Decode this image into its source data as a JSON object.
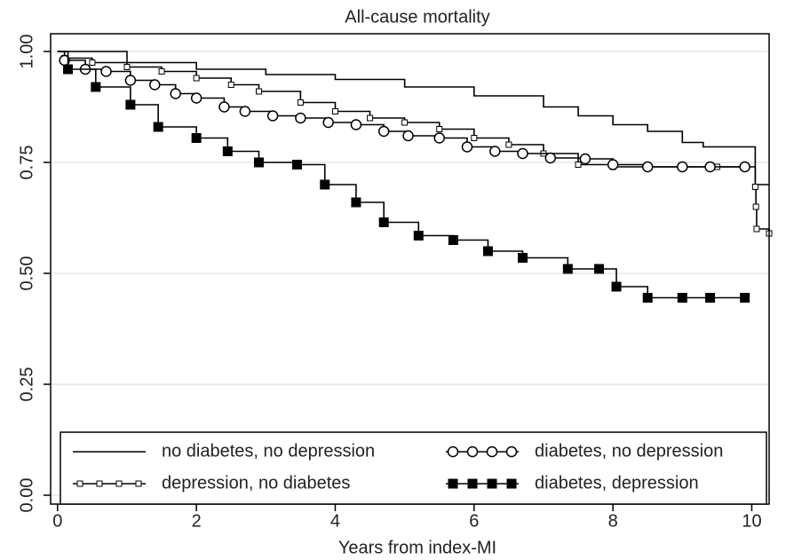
{
  "chart_data": {
    "type": "line",
    "step": true,
    "title": "All-cause mortality",
    "x_label": "Years from index-MI",
    "xlim": [
      -0.1,
      10.25
    ],
    "xticks": [
      0,
      2,
      4,
      6,
      8,
      10
    ],
    "ylim": [
      -0.02,
      1.04
    ],
    "yticks": [
      {
        "value": 0,
        "label": "0.00"
      },
      {
        "value": 0.25,
        "label": "0.25"
      },
      {
        "value": 0.5,
        "label": "0.50"
      },
      {
        "value": 0.75,
        "label": "0.75"
      },
      {
        "value": 1,
        "label": "1.00"
      }
    ],
    "grid": true,
    "legend": "bottom",
    "series": [
      {
        "name": "no diabetes, no depression",
        "color": "#000000",
        "marker": "none",
        "x": [
          0,
          1,
          2,
          3,
          4,
          5,
          6,
          7,
          7.5,
          8,
          8.5,
          9,
          9.3,
          10.05,
          10.25
        ],
        "values": [
          1,
          0.975,
          0.96,
          0.948,
          0.937,
          0.92,
          0.9,
          0.875,
          0.855,
          0.835,
          0.82,
          0.795,
          0.785,
          0.7,
          0.7
        ]
      },
      {
        "name": "depression, no diabetes",
        "color": "#000000",
        "marker": "open-square",
        "x": [
          0,
          0.1,
          0.5,
          1.0,
          1.5,
          2.0,
          2.5,
          2.9,
          3.5,
          4.0,
          4.5,
          5.0,
          5.5,
          6.0,
          6.5,
          7.0,
          7.5,
          8.0,
          8.5,
          9.0,
          9.5,
          9.9,
          10.05,
          10.06,
          10.07,
          10.25
        ],
        "values": [
          1,
          0.985,
          0.975,
          0.965,
          0.955,
          0.94,
          0.925,
          0.91,
          0.885,
          0.865,
          0.85,
          0.84,
          0.825,
          0.805,
          0.79,
          0.77,
          0.745,
          0.74,
          0.74,
          0.74,
          0.74,
          0.74,
          0.695,
          0.65,
          0.6,
          0.59
        ]
      },
      {
        "name": "diabetes, no depression",
        "color": "#000000",
        "marker": "open-circle",
        "x": [
          0,
          0.1,
          0.4,
          0.7,
          1.05,
          1.4,
          1.7,
          2.0,
          2.4,
          2.7,
          3.1,
          3.5,
          3.9,
          4.3,
          4.7,
          5.05,
          5.5,
          5.9,
          6.3,
          6.7,
          7.1,
          7.6,
          8.0,
          8.5,
          9.0,
          9.4,
          9.9
        ],
        "values": [
          1,
          0.98,
          0.96,
          0.955,
          0.935,
          0.925,
          0.905,
          0.895,
          0.875,
          0.865,
          0.855,
          0.85,
          0.84,
          0.835,
          0.82,
          0.81,
          0.805,
          0.785,
          0.775,
          0.77,
          0.76,
          0.758,
          0.745,
          0.74,
          0.74,
          0.74,
          0.74
        ]
      },
      {
        "name": "diabetes, depression",
        "color": "#000000",
        "marker": "filled-square",
        "x": [
          0,
          0.15,
          0.55,
          1.05,
          1.45,
          2.0,
          2.45,
          2.9,
          3.45,
          3.85,
          4.3,
          4.7,
          5.2,
          5.7,
          6.2,
          6.7,
          7.35,
          7.8,
          8.05,
          8.5,
          9.0,
          9.4,
          9.9
        ],
        "values": [
          1,
          0.96,
          0.92,
          0.88,
          0.83,
          0.805,
          0.775,
          0.75,
          0.745,
          0.7,
          0.66,
          0.615,
          0.585,
          0.575,
          0.55,
          0.535,
          0.51,
          0.51,
          0.47,
          0.445,
          0.445,
          0.445,
          0.445
        ]
      }
    ]
  }
}
